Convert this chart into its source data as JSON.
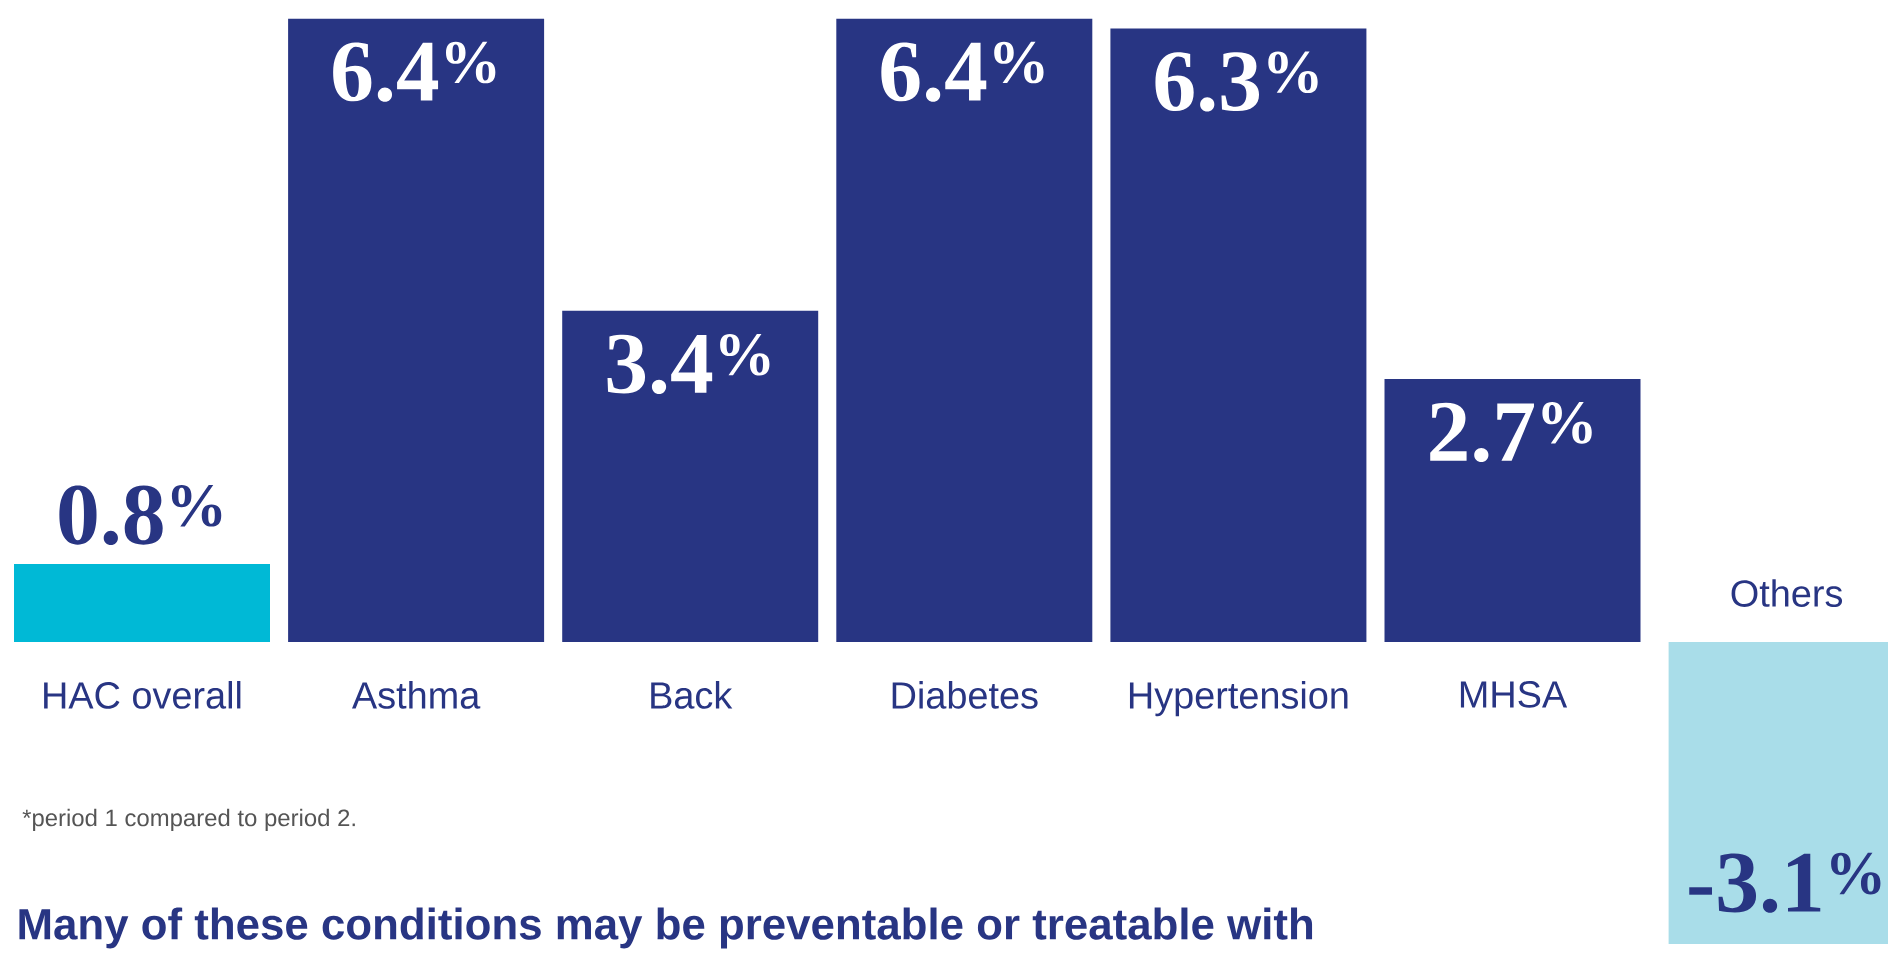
{
  "chart_data": {
    "type": "bar",
    "title": "Many of these conditions may be preventable or treatable with",
    "categories": [
      "HAC overall",
      "Asthma",
      "Back",
      "Diabetes",
      "Hypertension",
      "MHSA",
      "Others"
    ],
    "values": [
      0.8,
      6.4,
      3.4,
      6.4,
      6.3,
      2.7,
      -3.1
    ],
    "colors": [
      "#00b9d6",
      "#283583",
      "#283583",
      "#283583",
      "#283583",
      "#283583",
      "#a9dde9"
    ],
    "value_labels": [
      "0.8$^{%}$",
      "6.4$^{%}$",
      "3.4$^{%}$",
      "6.4$^{%}$",
      "6.3$^{%}$",
      "2.7$^{%}$",
      "-3.1$^{%}$"
    ],
    "annotations": [
      "*period 1 compared to period 2."
    ]
  }
}
